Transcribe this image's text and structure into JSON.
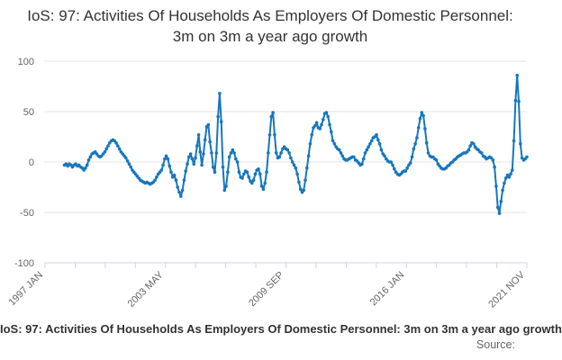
{
  "header": {
    "title": "IoS: 97: Activities Of Households As Employers Of Domestic Personnel: 3m on 3m a year ago growth"
  },
  "footer": {
    "caption": "IoS: 97: Activities Of Households As Employers Of Domestic Personnel: 3m on 3m a year ago growth",
    "source_label": "Source:"
  },
  "colors": {
    "line": "#1677bd",
    "grid": "#e6e6e6",
    "axis": "#ccd6eb",
    "tick_label": "#666666",
    "title_text": "#333333"
  },
  "chart_data": {
    "type": "line",
    "title": "IoS: 97: Activities Of Households As Employers Of Domestic Personnel: 3m on 3m a year ago growth",
    "xlabel": "",
    "ylabel": "",
    "ylim": [
      -100,
      100
    ],
    "y_gridlines": [
      100,
      50,
      0,
      -50,
      -100
    ],
    "grid": "horizontal-only",
    "legend": "none",
    "marker": "point",
    "x_axis_start": "1997 JAN",
    "x_axis_end": "2021 NOV",
    "x_axis_months_total": 298,
    "x_tick_count": 17,
    "x_labeled_tick_indices": [
      0,
      4,
      8,
      12,
      16
    ],
    "x_tick_labels": [
      "1997 JAN",
      "2003 MAY",
      "2009 SEP",
      "2016 JAN",
      "2021 NOV"
    ],
    "series_start": "1998 JAN",
    "series_start_month_index": 12,
    "series_frequency": "monthly",
    "values": [
      -3,
      -2,
      -4,
      -2,
      -3,
      -5,
      -3,
      -2,
      -4,
      -3,
      -5,
      -6,
      -8,
      -6,
      -3,
      2,
      5,
      8,
      9,
      10,
      8,
      6,
      5,
      6,
      8,
      10,
      13,
      16,
      19,
      21,
      22,
      21,
      19,
      16,
      13,
      10,
      8,
      6,
      4,
      1,
      -2,
      -5,
      -8,
      -10,
      -12,
      -14,
      -16,
      -18,
      -19,
      -20,
      -21,
      -20,
      -21,
      -22,
      -21,
      -20,
      -18,
      -15,
      -12,
      -10,
      -8,
      -3,
      3,
      6,
      3,
      -4,
      -10,
      -15,
      -13,
      -18,
      -25,
      -30,
      -34,
      -28,
      -18,
      -9,
      -2,
      5,
      8,
      3,
      -2,
      4,
      16,
      27,
      10,
      -3,
      8,
      22,
      35,
      37,
      20,
      9,
      -5,
      -10,
      9,
      45,
      68,
      40,
      -5,
      -28,
      -24,
      -10,
      5,
      9,
      12,
      9,
      3,
      0,
      -10,
      -15,
      -16,
      -12,
      -9,
      -10,
      -15,
      -19,
      -21,
      -18,
      -12,
      -8,
      -7,
      -12,
      -24,
      -27,
      -21,
      -10,
      9,
      27,
      45,
      49,
      27,
      9,
      4,
      5,
      9,
      13,
      15,
      13,
      12,
      9,
      4,
      0,
      -3,
      -6,
      -12,
      -20,
      -27,
      -30,
      -28,
      -18,
      -6,
      6,
      18,
      27,
      34,
      36,
      39,
      34,
      33,
      37,
      42,
      48,
      49,
      45,
      37,
      30,
      21,
      18,
      15,
      13,
      12,
      9,
      6,
      3,
      2,
      2,
      3,
      4,
      5,
      5,
      2,
      1,
      -1,
      -3,
      -2,
      3,
      9,
      12,
      15,
      18,
      21,
      24,
      25,
      27,
      22,
      18,
      12,
      8,
      6,
      3,
      1,
      0,
      0,
      -3,
      -7,
      -10,
      -12,
      -13,
      -12,
      -10,
      -9,
      -9,
      -6,
      -3,
      -1,
      5,
      13,
      18,
      24,
      34,
      43,
      49,
      46,
      33,
      19,
      9,
      6,
      5,
      5,
      3,
      2,
      -2,
      -4,
      -6,
      -7,
      -7,
      -6,
      -4,
      -3,
      -1,
      0,
      2,
      3,
      5,
      6,
      7,
      8,
      9,
      9,
      10,
      12,
      16,
      19,
      18,
      15,
      13,
      12,
      10,
      9,
      6,
      5,
      3,
      4,
      5,
      4,
      2,
      -5,
      -24,
      -45,
      -51,
      -39,
      -28,
      -21,
      -16,
      -13,
      -15,
      -12,
      -8,
      21,
      61,
      86,
      60,
      18,
      4,
      2,
      3,
      5
    ]
  }
}
